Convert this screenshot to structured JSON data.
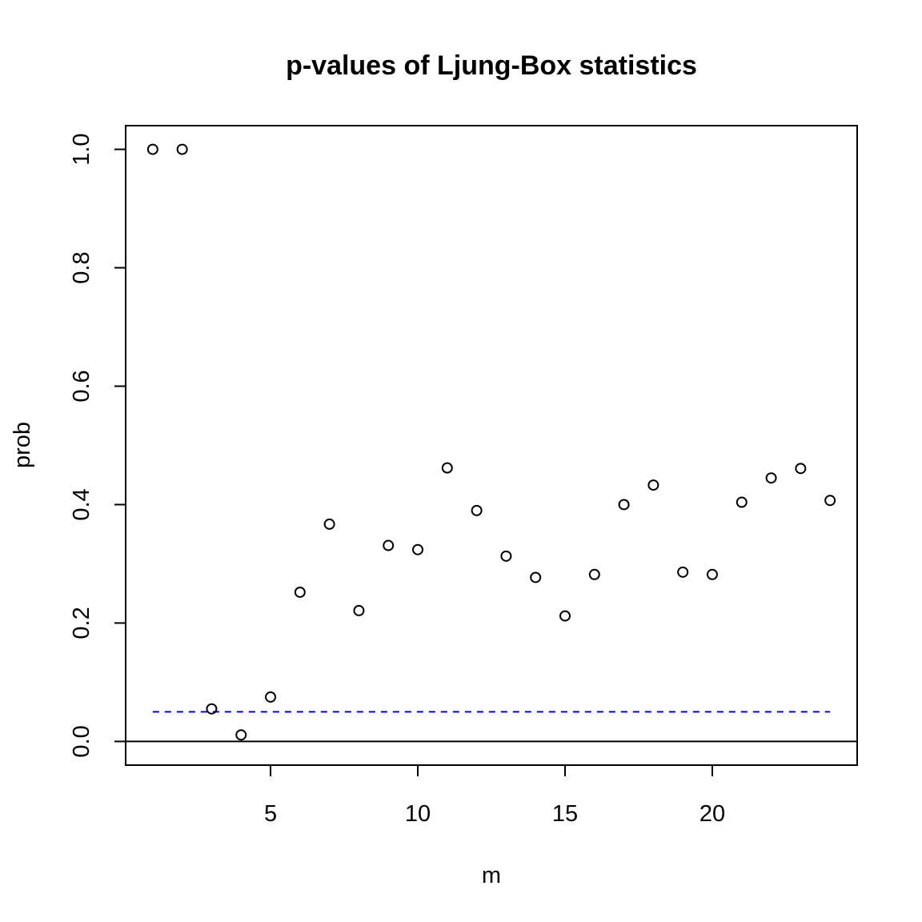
{
  "chart_data": {
    "type": "scatter",
    "title": "p-values of Ljung-Box statistics",
    "xlabel": "m",
    "ylabel": "prob",
    "xlim": [
      0.08,
      24.92
    ],
    "ylim": [
      -0.04,
      1.04
    ],
    "xticks": [
      5,
      10,
      15,
      20
    ],
    "yticks": [
      0.0,
      0.2,
      0.4,
      0.6,
      0.8,
      1.0
    ],
    "ytick_labels": [
      "0.0",
      "0.2",
      "0.4",
      "0.6",
      "0.8",
      "1.0"
    ],
    "grid": false,
    "legend": "none",
    "series": [
      {
        "marker": "open-circle",
        "color": "#000000",
        "x": [
          1,
          2,
          3,
          4,
          5,
          6,
          7,
          8,
          9,
          10,
          11,
          12,
          13,
          14,
          15,
          16,
          17,
          18,
          19,
          20,
          21,
          22,
          23,
          24
        ],
        "y": [
          1.0,
          1.0,
          0.055,
          0.011,
          0.075,
          0.252,
          0.367,
          0.221,
          0.331,
          0.324,
          0.462,
          0.39,
          0.313,
          0.277,
          0.212,
          0.282,
          0.4,
          0.433,
          0.286,
          0.282,
          0.404,
          0.445,
          0.461,
          0.407
        ]
      }
    ],
    "reference_lines": [
      {
        "y": 0.05,
        "x_from": 1,
        "x_to": 24,
        "style": "dashed",
        "color": "#0000ff"
      },
      {
        "y": 0,
        "style": "solid",
        "color": "#000000",
        "full_width": true
      }
    ]
  }
}
